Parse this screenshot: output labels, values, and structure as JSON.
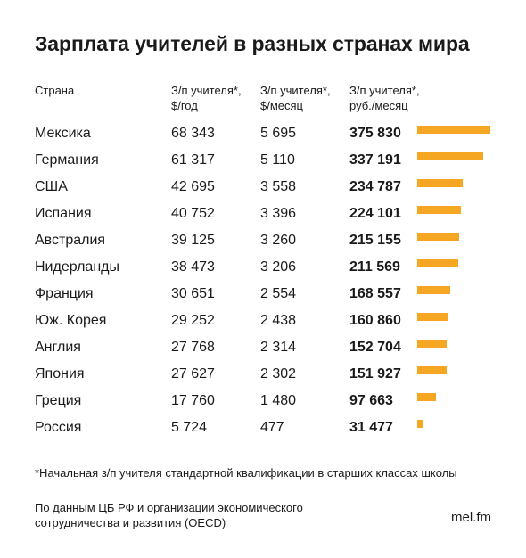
{
  "title": "Зарплата учителей в разных странах мира",
  "headers": {
    "country": "Страна",
    "year_line1": "З/п учителя*,",
    "year_line2": "$/год",
    "month_line1": "З/п учителя*,",
    "month_line2": "$/месяц",
    "rub_line1": "З/п учителя*,",
    "rub_line2": "руб./месяц"
  },
  "chart_data": {
    "type": "table",
    "columns": [
      "Страна",
      "З/п учителя*, $/год",
      "З/п учителя*, $/месяц",
      "З/п учителя*, руб./месяц"
    ],
    "bar_color": "#f5a623",
    "rows": [
      {
        "country": "Мексика",
        "usd_year": "68 343",
        "usd_month": "5 695",
        "rub_month": "375 830",
        "value": 375830
      },
      {
        "country": "Германия",
        "usd_year": "61 317",
        "usd_month": "5 110",
        "rub_month": "337 191",
        "value": 337191
      },
      {
        "country": "США",
        "usd_year": "42 695",
        "usd_month": "3 558",
        "rub_month": "234 787",
        "value": 234787
      },
      {
        "country": "Испания",
        "usd_year": "40 752",
        "usd_month": "3 396",
        "rub_month": "224 101",
        "value": 224101
      },
      {
        "country": "Австралия",
        "usd_year": "39 125",
        "usd_month": "3 260",
        "rub_month": "215 155",
        "value": 215155
      },
      {
        "country": "Нидерланды",
        "usd_year": "38 473",
        "usd_month": "3 206",
        "rub_month": "211 569",
        "value": 211569
      },
      {
        "country": "Франция",
        "usd_year": "30 651",
        "usd_month": "2 554",
        "rub_month": "168 557",
        "value": 168557
      },
      {
        "country": "Юж. Корея",
        "usd_year": "29 252",
        "usd_month": "2 438",
        "rub_month": "160 860",
        "value": 160860
      },
      {
        "country": "Англия",
        "usd_year": "27 768",
        "usd_month": "2 314",
        "rub_month": "152 704",
        "value": 152704
      },
      {
        "country": "Япония",
        "usd_year": "27 627",
        "usd_month": "2 302",
        "rub_month": "151 927",
        "value": 151927
      },
      {
        "country": "Греция",
        "usd_year": "17 760",
        "usd_month": "1 480",
        "rub_month": "97 663",
        "value": 97663
      },
      {
        "country": "Россия",
        "usd_year": "5 724",
        "usd_month": "477",
        "rub_month": "31 477",
        "value": 31477
      }
    ]
  },
  "footnote": "*Начальная з/п учителя стандартной квалификации в старших классах школы",
  "source_line1": "По данным ЦБ РФ и организации экономического",
  "source_line2": "сотрудничества и развития (OECD)",
  "brand": "mel.fm"
}
